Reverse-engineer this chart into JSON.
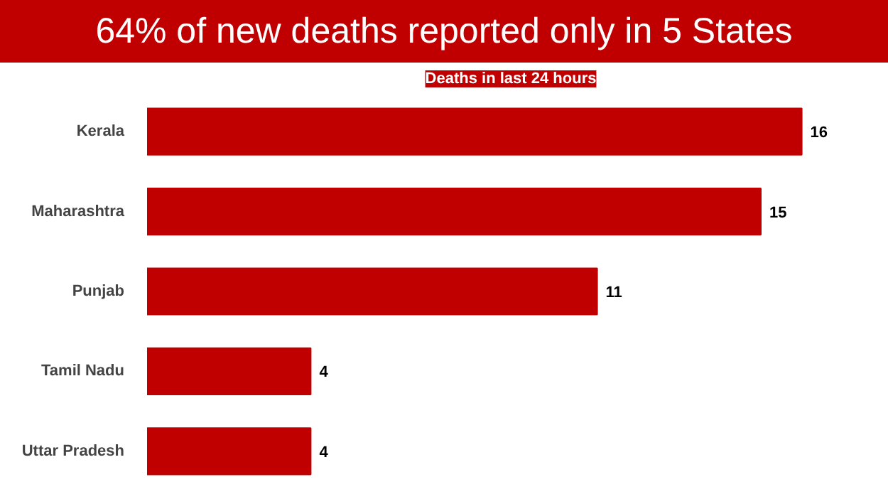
{
  "chart_data": {
    "type": "bar",
    "orientation": "horizontal",
    "title": "64% of new deaths reported only in 5 States",
    "subtitle": "Deaths in last 24 hours",
    "categories": [
      "Kerala",
      "Maharashtra",
      "Punjab",
      "Tamil Nadu",
      "Uttar Pradesh"
    ],
    "values": [
      16,
      15,
      11,
      4,
      4
    ],
    "color": "#c00000",
    "data_labels": true
  }
}
